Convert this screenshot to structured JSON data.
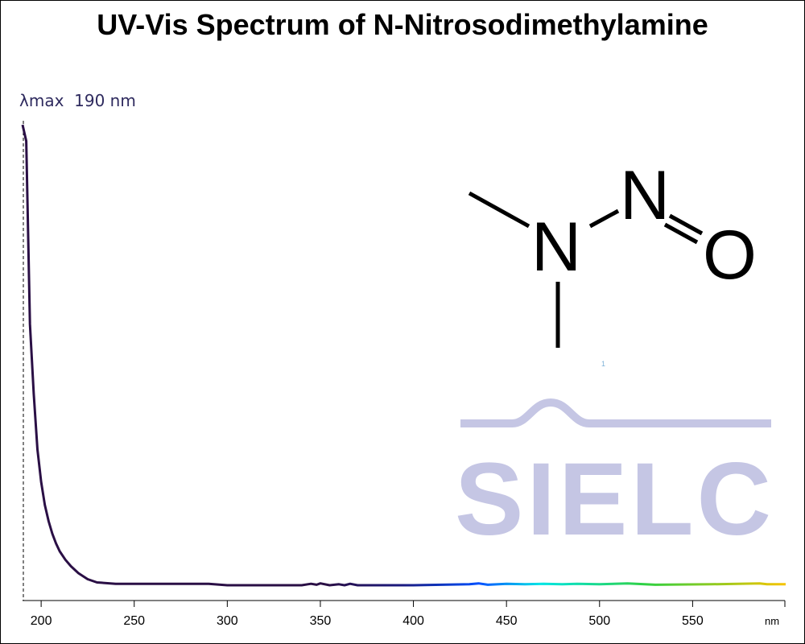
{
  "title": "UV-Vis Spectrum of N-Nitrosodimethylamine",
  "annotation": "λmax  190 nm",
  "chart_data": {
    "type": "line",
    "title": "UV-Vis Spectrum of N-Nitrosodimethylamine",
    "xlabel": "nm",
    "ylabel": "",
    "xlim": [
      190,
      600
    ],
    "ylim": [
      0,
      1
    ],
    "x_ticks": [
      200,
      250,
      300,
      350,
      400,
      450,
      500,
      550
    ],
    "x_tick_labels": [
      "200",
      "250",
      "300",
      "350",
      "400",
      "450",
      "500",
      "550"
    ],
    "grid": false,
    "lambda_max": 190,
    "series": [
      {
        "x": [
          190,
          192,
          194,
          196,
          198,
          200,
          202,
          204,
          206,
          208,
          210,
          213,
          216,
          220,
          225,
          230,
          240,
          250,
          270,
          290,
          300,
          320,
          340,
          345,
          348,
          350,
          355,
          360,
          363,
          366,
          370,
          400,
          430,
          435,
          440,
          450,
          460,
          470,
          480,
          488,
          500,
          515,
          530,
          560,
          586,
          590,
          600
        ],
        "y": [
          1.0,
          0.965,
          0.57,
          0.42,
          0.3,
          0.23,
          0.18,
          0.145,
          0.118,
          0.097,
          0.08,
          0.062,
          0.048,
          0.033,
          0.02,
          0.013,
          0.01,
          0.01,
          0.01,
          0.01,
          0.007,
          0.007,
          0.007,
          0.01,
          0.008,
          0.011,
          0.007,
          0.009,
          0.007,
          0.01,
          0.007,
          0.007,
          0.009,
          0.011,
          0.008,
          0.01,
          0.009,
          0.01,
          0.009,
          0.01,
          0.009,
          0.011,
          0.008,
          0.009,
          0.011,
          0.009,
          0.009
        ]
      }
    ]
  },
  "structure": {
    "atom_n1": "N",
    "atom_n2": "N",
    "atom_o": "O"
  },
  "logo": {
    "text": "SIELC",
    "color": "#c5c6e4"
  },
  "tiny_mark": "1",
  "colors": {
    "line_start": "#2a0f45",
    "spectrum": [
      "#2a0f45",
      "#1a1a80",
      "#0050ff",
      "#00e5e5",
      "#30d040",
      "#f5c400"
    ]
  }
}
